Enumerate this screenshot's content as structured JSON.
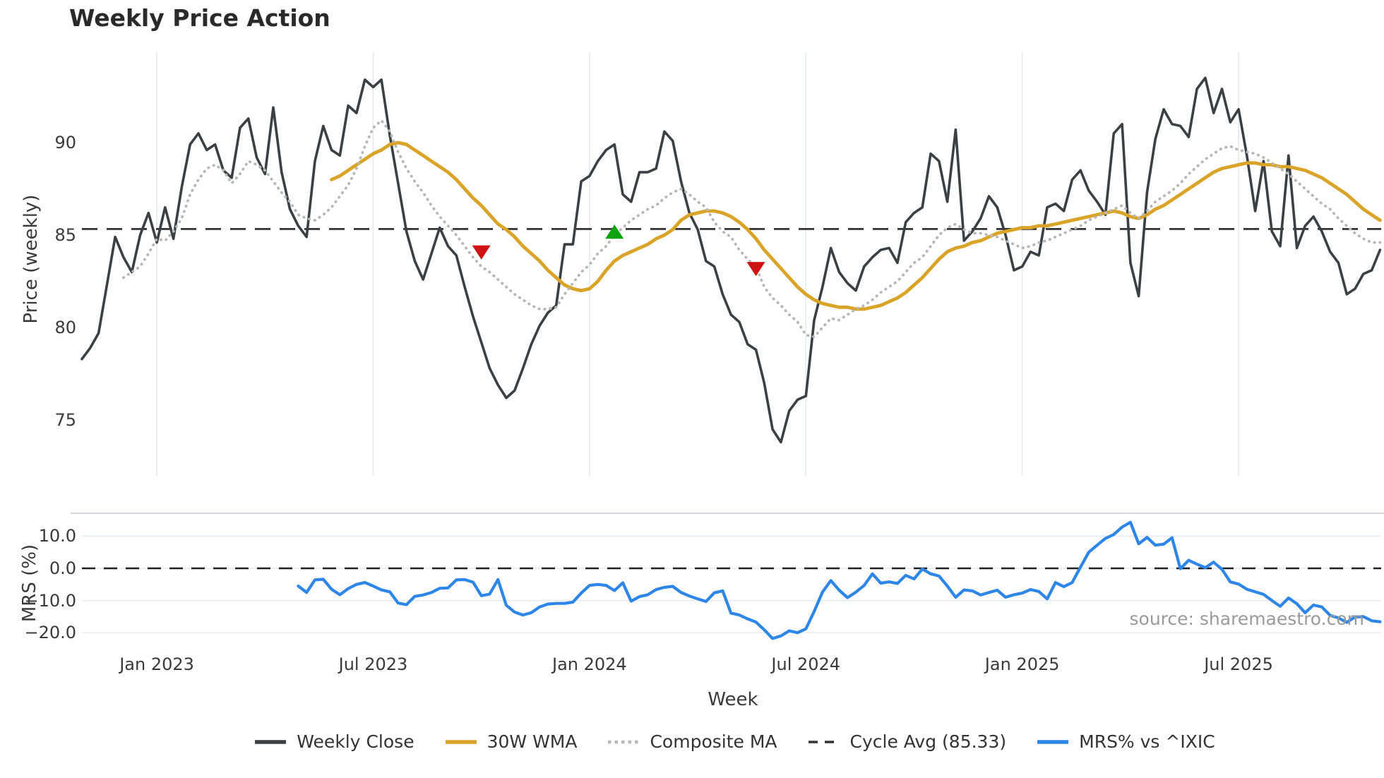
{
  "title": "Weekly Price Action",
  "source": "source: sharemaestro.com",
  "colors": {
    "background": "#ffffff",
    "close": "#3b4045",
    "wma": "#d9a427",
    "composite": "#b8b8b8",
    "cycle_avg": "#333333",
    "mrs": "#2e86e9",
    "sell": "#cf1313",
    "buy": "#0fa312",
    "grid": "#e9ebf2",
    "spine": "#cfd1d8",
    "zero_line": "#1f1f1f",
    "text": "#3a3a3a",
    "title_text": "#2a2a2a",
    "source_text": "#9b9b9b"
  },
  "xaxis": {
    "label": "Week",
    "ticks": [
      {
        "label": "Jan 2023",
        "week": 9
      },
      {
        "label": "Jul 2023",
        "week": 35
      },
      {
        "label": "Jan 2024",
        "week": 61
      },
      {
        "label": "Jul 2024",
        "week": 87
      },
      {
        "label": "Jan 2025",
        "week": 113
      },
      {
        "label": "Jul 2025",
        "week": 139
      }
    ]
  },
  "price_panel": {
    "ylabel": "Price (weekly)",
    "yticks": [
      {
        "label": "90",
        "value": 90
      },
      {
        "label": "85",
        "value": 85
      },
      {
        "label": "80",
        "value": 80
      },
      {
        "label": "75",
        "value": 75
      }
    ]
  },
  "mrs_panel": {
    "ylabel": "MRS (%)",
    "yticks": [
      {
        "label": "10.0",
        "value": 10
      },
      {
        "label": "0.0",
        "value": 0
      },
      {
        "label": "−10.0",
        "value": -10
      },
      {
        "label": "−20.0",
        "value": -20
      }
    ]
  },
  "legend": [
    {
      "label": "Weekly Close",
      "style": "solid",
      "color": "#3b4045"
    },
    {
      "label": "30W WMA",
      "style": "solid",
      "color": "#d9a427"
    },
    {
      "label": "Composite MA",
      "style": "dotted",
      "color": "#b8b8b8"
    },
    {
      "label": "Cycle Avg (85.33)",
      "style": "dashed",
      "color": "#333333"
    },
    {
      "label": "MRS% vs ^IXIC",
      "style": "solid",
      "color": "#2e86e9"
    }
  ],
  "chart_data": {
    "type": "line",
    "title": "Weekly Price Action",
    "frequency": "weekly",
    "start_date": "2022-10-31",
    "weeks_total": 157,
    "x_gridlines": true,
    "panels": [
      {
        "name": "price",
        "ylabel": "Price (weekly)",
        "ylim": [
          73.0,
          94.8
        ],
        "cycle_avg": 85.33,
        "series": [
          {
            "name": "Weekly Close",
            "style": "solid",
            "color": "#3b4045",
            "start_week": 0,
            "values": [
              78.3,
              78.9,
              79.7,
              82.3,
              84.9,
              83.8,
              83.0,
              85.0,
              86.2,
              84.6,
              86.5,
              84.8,
              87.6,
              89.9,
              90.5,
              89.6,
              89.9,
              88.5,
              88.1,
              90.8,
              91.3,
              89.2,
              88.3,
              91.9,
              88.4,
              86.4,
              85.5,
              84.9,
              89.0,
              90.9,
              89.6,
              89.3,
              92.0,
              91.6,
              93.4,
              93.0,
              93.4,
              90.4,
              87.8,
              85.2,
              83.6,
              82.6,
              84.0,
              85.4,
              84.4,
              83.9,
              82.2,
              80.6,
              79.2,
              77.8,
              76.9,
              76.2,
              76.6,
              77.8,
              79.1,
              80.1,
              80.8,
              81.2,
              84.5,
              84.5,
              87.9,
              88.2,
              89.0,
              89.6,
              89.9,
              87.2,
              86.8,
              88.4,
              88.4,
              88.6,
              90.6,
              90.1,
              87.9,
              86.2,
              85.3,
              83.6,
              83.3,
              81.8,
              80.7,
              80.3,
              79.1,
              78.8,
              77.0,
              74.5,
              73.8,
              75.5,
              76.1,
              76.3,
              80.4,
              82.2,
              84.3,
              83.0,
              82.4,
              82.0,
              83.3,
              83.8,
              84.2,
              84.3,
              83.5,
              85.7,
              86.2,
              86.5,
              89.4,
              89.0,
              86.8,
              90.7,
              84.7,
              85.2,
              85.9,
              87.1,
              86.5,
              85.0,
              83.1,
              83.3,
              84.1,
              83.9,
              86.5,
              86.7,
              86.3,
              88.0,
              88.5,
              87.4,
              86.8,
              86.1,
              90.5,
              91.0,
              83.5,
              81.7,
              87.3,
              90.2,
              91.8,
              91.0,
              90.9,
              90.3,
              92.9,
              93.5,
              91.6,
              92.9,
              91.1,
              91.8,
              89.3,
              86.3,
              89.0,
              85.2,
              84.4,
              89.3,
              84.3,
              85.5,
              86.0,
              85.2,
              84.1,
              83.5,
              81.8,
              82.1,
              82.9,
              83.1,
              84.2
            ]
          },
          {
            "name": "30W WMA",
            "style": "solid",
            "color": "#d9a427",
            "start_week": 30,
            "values": [
              88.0,
              88.2,
              88.5,
              88.8,
              89.1,
              89.4,
              89.6,
              89.9,
              90.0,
              89.9,
              89.6,
              89.3,
              89.0,
              88.7,
              88.4,
              88.0,
              87.5,
              87.0,
              86.6,
              86.1,
              85.6,
              85.3,
              84.9,
              84.4,
              84.0,
              83.6,
              83.1,
              82.7,
              82.3,
              82.1,
              82.0,
              82.1,
              82.5,
              83.1,
              83.6,
              83.9,
              84.1,
              84.3,
              84.5,
              84.8,
              85.0,
              85.3,
              85.8,
              86.1,
              86.2,
              86.3,
              86.3,
              86.2,
              86.0,
              85.7,
              85.3,
              84.8,
              84.2,
              83.7,
              83.2,
              82.7,
              82.2,
              81.8,
              81.5,
              81.3,
              81.2,
              81.1,
              81.1,
              81.0,
              81.0,
              81.1,
              81.2,
              81.4,
              81.6,
              81.9,
              82.3,
              82.7,
              83.2,
              83.7,
              84.1,
              84.3,
              84.4,
              84.6,
              84.7,
              84.9,
              85.1,
              85.2,
              85.3,
              85.4,
              85.4,
              85.5,
              85.5,
              85.6,
              85.7,
              85.8,
              85.9,
              86.0,
              86.1,
              86.2,
              86.3,
              86.2,
              86.0,
              85.9,
              86.1,
              86.4,
              86.6,
              86.9,
              87.2,
              87.5,
              87.8,
              88.1,
              88.4,
              88.6,
              88.7,
              88.8,
              88.9,
              88.9,
              88.8,
              88.8,
              88.7,
              88.7,
              88.6,
              88.5,
              88.3,
              88.1,
              87.8,
              87.5,
              87.2,
              86.8,
              86.4,
              86.1,
              85.8
            ]
          },
          {
            "name": "Composite MA",
            "style": "dotted",
            "color": "#b8b8b8",
            "start_week": 5,
            "values": [
              82.7,
              83.0,
              83.3,
              84.0,
              84.8,
              84.7,
              85.2,
              85.9,
              87.2,
              88.0,
              88.6,
              88.8,
              88.5,
              87.8,
              88.3,
              89.0,
              88.8,
              88.5,
              87.9,
              87.3,
              86.8,
              86.1,
              85.9,
              85.8,
              86.1,
              86.5,
              87.1,
              87.7,
              88.6,
              89.8,
              90.8,
              91.2,
              90.6,
              89.5,
              88.6,
              87.9,
              87.3,
              86.6,
              86.0,
              85.5,
              85.0,
              84.4,
              83.8,
              83.3,
              83.0,
              82.6,
              82.2,
              81.8,
              81.5,
              81.2,
              81.0,
              81.0,
              81.1,
              81.8,
              82.4,
              83.0,
              83.4,
              84.0,
              84.4,
              85.0,
              85.4,
              85.8,
              86.1,
              86.4,
              86.6,
              87.0,
              87.3,
              87.5,
              87.2,
              86.8,
              86.5,
              85.7,
              85.2,
              84.9,
              84.2,
              83.7,
              83.3,
              82.2,
              81.6,
              81.2,
              80.7,
              80.3,
              79.6,
              79.5,
              80.0,
              80.5,
              80.4,
              80.7,
              81.0,
              81.2,
              81.5,
              81.9,
              82.2,
              82.5,
              83.0,
              83.5,
              83.8,
              84.4,
              85.0,
              85.4,
              85.6,
              85.3,
              85.1,
              85.1,
              85.0,
              84.9,
              84.7,
              84.5,
              84.3,
              84.4,
              84.6,
              84.7,
              84.9,
              85.1,
              85.3,
              85.5,
              85.8,
              86.0,
              86.2,
              86.4,
              86.6,
              86.2,
              85.9,
              86.3,
              86.8,
              87.1,
              87.4,
              87.8,
              88.3,
              88.7,
              89.1,
              89.4,
              89.7,
              89.8,
              89.6,
              89.5,
              89.4,
              89.2,
              88.9,
              88.6,
              88.3,
              87.9,
              87.5,
              87.1,
              86.7,
              86.4,
              85.9,
              85.5,
              85.1,
              84.8,
              84.6,
              84.6
            ]
          }
        ],
        "signals": [
          {
            "type": "sell",
            "week": 48,
            "price": 84.1
          },
          {
            "type": "buy",
            "week": 64,
            "price": 85.15
          },
          {
            "type": "sell",
            "week": 81,
            "price": 83.2
          }
        ]
      },
      {
        "name": "mrs",
        "ylabel": "MRS (%)",
        "ylim": [
          -24,
          17
        ],
        "zero_line": 0,
        "series": [
          {
            "name": "MRS% vs ^IXIC",
            "style": "solid",
            "color": "#2e86e9",
            "start_week": 26,
            "values": [
              -5.5,
              -7.5,
              -3.6,
              -3.4,
              -6.5,
              -8.2,
              -6.3,
              -5.0,
              -4.4,
              -5.5,
              -6.7,
              -7.3,
              -10.8,
              -11.3,
              -8.7,
              -8.3,
              -7.5,
              -6.2,
              -6.1,
              -3.6,
              -3.5,
              -4.3,
              -8.5,
              -8.0,
              -3.5,
              -11.5,
              -13.6,
              -14.5,
              -13.8,
              -12.0,
              -11.1,
              -10.9,
              -10.9,
              -10.5,
              -7.7,
              -5.3,
              -5.0,
              -5.3,
              -6.9,
              -4.5,
              -10.2,
              -8.8,
              -8.2,
              -6.6,
              -5.9,
              -5.6,
              -7.5,
              -8.6,
              -9.5,
              -10.3,
              -7.6,
              -7.0,
              -13.9,
              -14.5,
              -15.7,
              -16.7,
              -19.1,
              -21.8,
              -21.0,
              -19.4,
              -20.0,
              -18.8,
              -13.4,
              -7.4,
              -3.8,
              -6.8,
              -9.1,
              -7.4,
              -5.3,
              -1.7,
              -4.6,
              -4.2,
              -4.7,
              -2.2,
              -3.3,
              -0.2,
              -1.7,
              -2.4,
              -5.5,
              -9.0,
              -6.7,
              -7.0,
              -8.3,
              -7.5,
              -6.8,
              -9.0,
              -8.2,
              -7.7,
              -6.6,
              -7.2,
              -9.5,
              -4.4,
              -5.7,
              -4.4,
              0.4,
              5.0,
              7.2,
              9.3,
              10.5,
              12.8,
              14.3,
              7.6,
              9.6,
              7.2,
              7.5,
              9.5,
              -0.1,
              2.5,
              1.3,
              0.2,
              1.9,
              -0.3,
              -4.2,
              -4.9,
              -6.5,
              -7.3,
              -8.1,
              -10.0,
              -11.8,
              -9.2,
              -11.0,
              -13.8,
              -11.4,
              -12.0,
              -14.6,
              -15.4,
              -16.8,
              -15.1,
              -15.0,
              -16.3,
              -16.6
            ]
          }
        ]
      }
    ]
  }
}
